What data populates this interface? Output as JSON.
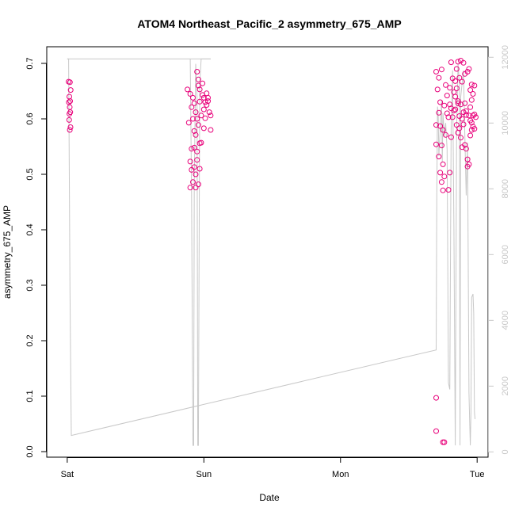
{
  "chart_data": {
    "type": "scatter",
    "title": "ATOM4 Northeast_Pacific_2 asymmetry_675_AMP",
    "xlabel": "Date",
    "ylabel": "asymmetry_675_AMP",
    "x_ticks": [
      {
        "x": 0,
        "label": "Sat"
      },
      {
        "x": 1,
        "label": "Sun"
      },
      {
        "x": 2,
        "label": "Mon"
      },
      {
        "x": 3,
        "label": "Tue"
      }
    ],
    "xlim": [
      -0.15,
      3.08
    ],
    "ylim": [
      -0.01,
      0.73
    ],
    "y_ticks": [
      0.0,
      0.1,
      0.2,
      0.3,
      0.4,
      0.5,
      0.6,
      0.7
    ],
    "y2_ticks": [
      0,
      2000,
      4000,
      6000,
      8000,
      10000,
      12000
    ],
    "y2lim": [
      -160,
      12320
    ],
    "grid": false,
    "colors": {
      "points": "#e8007a",
      "line": "#c8c8c8",
      "axis": "#000000"
    },
    "series": [
      {
        "marker": "open-circle",
        "points": [
          [
            0.01,
            0.667
          ],
          [
            0.02,
            0.666
          ],
          [
            0.015,
            0.64
          ],
          [
            0.025,
            0.652
          ],
          [
            0.012,
            0.63
          ],
          [
            0.018,
            0.621
          ],
          [
            0.022,
            0.612
          ],
          [
            0.016,
            0.609
          ],
          [
            0.014,
            0.598
          ],
          [
            0.024,
            0.585
          ],
          [
            0.019,
            0.58
          ],
          [
            0.021,
            0.632
          ],
          [
            0.88,
            0.653
          ],
          [
            0.9,
            0.645
          ],
          [
            0.92,
            0.638
          ],
          [
            0.95,
            0.685
          ],
          [
            0.96,
            0.671
          ],
          [
            0.99,
            0.664
          ],
          [
            1.02,
            0.646
          ],
          [
            1.03,
            0.638
          ],
          [
            1.01,
            0.63
          ],
          [
            0.97,
            0.631
          ],
          [
            0.93,
            0.628
          ],
          [
            0.91,
            0.621
          ],
          [
            0.94,
            0.612
          ],
          [
            1.0,
            0.617
          ],
          [
            1.04,
            0.612
          ],
          [
            1.05,
            0.606
          ],
          [
            0.98,
            0.606
          ],
          [
            0.92,
            0.6
          ],
          [
            0.89,
            0.593
          ],
          [
            0.96,
            0.589
          ],
          [
            1.0,
            0.583
          ],
          [
            1.05,
            0.58
          ],
          [
            0.94,
            0.571
          ],
          [
            0.97,
            0.556
          ],
          [
            0.93,
            0.548
          ],
          [
            0.91,
            0.546
          ],
          [
            0.95,
            0.541
          ],
          [
            0.9,
            0.523
          ],
          [
            0.93,
            0.513
          ],
          [
            0.95,
            0.526
          ],
          [
            0.91,
            0.508
          ],
          [
            0.97,
            0.51
          ],
          [
            0.94,
            0.5
          ],
          [
            0.92,
            0.486
          ],
          [
            0.96,
            0.482
          ],
          [
            0.9,
            0.476
          ],
          [
            0.94,
            0.476
          ],
          [
            0.99,
            0.643
          ],
          [
            1.02,
            0.625
          ],
          [
            0.97,
            0.653
          ],
          [
            1.01,
            0.601
          ],
          [
            0.96,
            0.66
          ],
          [
            0.93,
            0.578
          ],
          [
            1.03,
            0.632
          ],
          [
            0.95,
            0.6
          ],
          [
            0.98,
            0.557
          ],
          [
            1.0,
            0.638
          ],
          [
            2.7,
            0.097
          ],
          [
            2.7,
            0.037
          ],
          [
            2.75,
            0.017
          ],
          [
            2.76,
            0.017
          ],
          [
            2.7,
            0.685
          ],
          [
            2.72,
            0.674
          ],
          [
            2.74,
            0.689
          ],
          [
            2.71,
            0.653
          ],
          [
            2.73,
            0.63
          ],
          [
            2.76,
            0.624
          ],
          [
            2.78,
            0.61
          ],
          [
            2.72,
            0.611
          ],
          [
            2.7,
            0.589
          ],
          [
            2.73,
            0.587
          ],
          [
            2.75,
            0.58
          ],
          [
            2.77,
            0.571
          ],
          [
            2.74,
            0.552
          ],
          [
            2.7,
            0.554
          ],
          [
            2.72,
            0.532
          ],
          [
            2.75,
            0.518
          ],
          [
            2.73,
            0.503
          ],
          [
            2.76,
            0.496
          ],
          [
            2.74,
            0.486
          ],
          [
            2.75,
            0.471
          ],
          [
            2.79,
            0.472
          ],
          [
            2.8,
            0.503
          ],
          [
            2.81,
            0.567
          ],
          [
            2.82,
            0.603
          ],
          [
            2.8,
            0.626
          ],
          [
            2.83,
            0.648
          ],
          [
            2.84,
            0.668
          ],
          [
            2.82,
            0.673
          ],
          [
            2.81,
            0.702
          ],
          [
            2.86,
            0.703
          ],
          [
            2.85,
            0.69
          ],
          [
            2.88,
            0.705
          ],
          [
            2.9,
            0.701
          ],
          [
            2.87,
            0.674
          ],
          [
            2.89,
            0.667
          ],
          [
            2.91,
            0.681
          ],
          [
            2.85,
            0.655
          ],
          [
            2.84,
            0.64
          ],
          [
            2.86,
            0.628
          ],
          [
            2.88,
            0.626
          ],
          [
            2.9,
            0.612
          ],
          [
            2.87,
            0.605
          ],
          [
            2.89,
            0.6
          ],
          [
            2.92,
            0.607
          ],
          [
            2.85,
            0.589
          ],
          [
            2.87,
            0.583
          ],
          [
            2.86,
            0.575
          ],
          [
            2.88,
            0.566
          ],
          [
            2.91,
            0.553
          ],
          [
            2.89,
            0.549
          ],
          [
            2.92,
            0.546
          ],
          [
            2.93,
            0.527
          ],
          [
            2.94,
            0.518
          ],
          [
            2.93,
            0.514
          ],
          [
            2.96,
            0.58
          ],
          [
            2.95,
            0.597
          ],
          [
            2.97,
            0.606
          ],
          [
            2.98,
            0.608
          ],
          [
            2.95,
            0.621
          ],
          [
            2.96,
            0.634
          ],
          [
            2.97,
            0.645
          ],
          [
            2.98,
            0.66
          ],
          [
            2.96,
            0.662
          ],
          [
            2.95,
            0.652
          ],
          [
            2.94,
            0.69
          ],
          [
            2.93,
            0.685
          ],
          [
            2.99,
            0.603
          ],
          [
            2.97,
            0.586
          ],
          [
            2.95,
            0.57
          ],
          [
            2.98,
            0.582
          ],
          [
            2.92,
            0.614
          ],
          [
            2.9,
            0.59
          ],
          [
            2.83,
            0.615
          ],
          [
            2.81,
            0.619
          ],
          [
            2.79,
            0.603
          ],
          [
            2.78,
            0.642
          ],
          [
            2.77,
            0.661
          ],
          [
            2.8,
            0.656
          ],
          [
            2.84,
            0.617
          ],
          [
            2.86,
            0.632
          ],
          [
            2.91,
            0.628
          ],
          [
            2.94,
            0.606
          ],
          [
            2.96,
            0.593
          ]
        ]
      },
      {
        "axis": "right",
        "style": "line",
        "points": [
          [
            0.0,
            11950
          ],
          [
            0.01,
            11950
          ],
          [
            0.02,
            5000
          ],
          [
            0.03,
            500
          ],
          [
            2.7,
            3100
          ],
          [
            2.705,
            7800
          ],
          [
            2.71,
            10500
          ],
          [
            2.715,
            10200
          ],
          [
            2.72,
            9000
          ],
          [
            2.73,
            9800
          ],
          [
            2.74,
            10700
          ],
          [
            2.745,
            8800
          ],
          [
            2.75,
            10300
          ],
          [
            2.76,
            9600
          ],
          [
            2.77,
            10000
          ],
          [
            2.78,
            9200
          ],
          [
            2.79,
            2100
          ],
          [
            2.8,
            1900
          ],
          [
            2.81,
            9800
          ],
          [
            2.82,
            11600
          ],
          [
            2.83,
            6800
          ],
          [
            2.84,
            200
          ],
          [
            2.85,
            9800
          ],
          [
            2.86,
            11800
          ],
          [
            2.87,
            11200
          ],
          [
            2.875,
            200
          ],
          [
            2.88,
            10800
          ],
          [
            2.89,
            11200
          ],
          [
            2.9,
            11600
          ],
          [
            2.91,
            9600
          ],
          [
            2.92,
            7800
          ],
          [
            2.93,
            9400
          ],
          [
            2.94,
            1800
          ],
          [
            2.945,
            1000
          ],
          [
            2.95,
            200
          ],
          [
            2.955,
            1200
          ],
          [
            2.96,
            4700
          ],
          [
            2.97,
            4800
          ],
          [
            2.975,
            4200
          ],
          [
            2.98,
            1200
          ],
          [
            2.985,
            1000
          ]
        ]
      },
      {
        "axis": "right",
        "style": "line",
        "points": [
          [
            0.9,
            11950
          ],
          [
            0.91,
            7800
          ],
          [
            0.92,
            200
          ],
          [
            0.925,
            200
          ],
          [
            0.93,
            8200
          ],
          [
            0.94,
            11800
          ],
          [
            0.95,
            10800
          ],
          [
            0.955,
            200
          ],
          [
            0.96,
            200
          ],
          [
            0.97,
            11200
          ],
          [
            0.98,
            11950
          ],
          [
            0.99,
            11950
          ],
          [
            1.0,
            11950
          ],
          [
            1.02,
            11950
          ],
          [
            1.05,
            11950
          ]
        ]
      },
      {
        "axis": "right",
        "style": "line",
        "points": [
          [
            0.0,
            11950
          ],
          [
            1.05,
            11950
          ]
        ]
      }
    ]
  }
}
